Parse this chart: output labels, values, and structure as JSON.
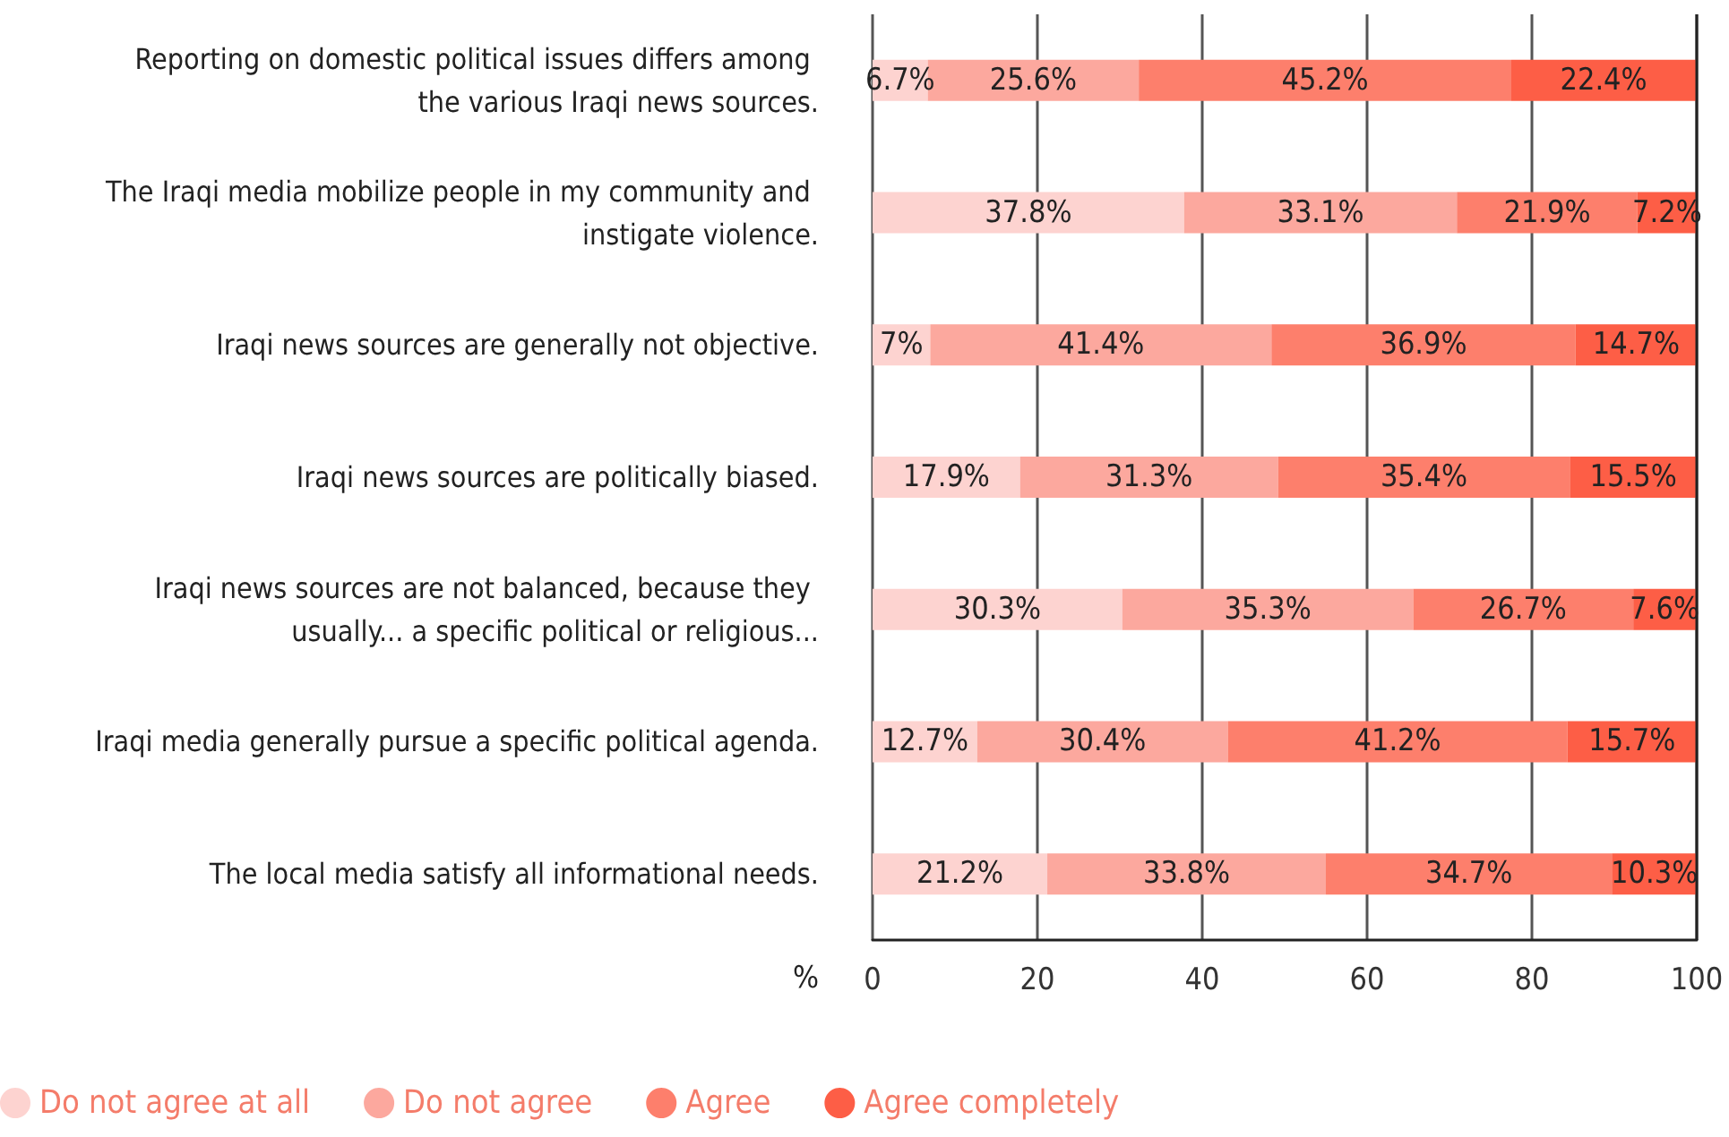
{
  "chart_data": {
    "type": "bar",
    "orientation": "horizontal",
    "stacked": true,
    "xlabel": "%",
    "categories": [
      "Reporting on domestic political issues differs among the various Iraqi news sources.",
      "The Iraqi media mobilize people in my community and instigate violence.",
      "Iraqi news sources are generally not objective.",
      "Iraqi news sources are politically biased.",
      "Iraqi news sources are not balanced, because they usually... a specific political or religious...",
      "Iraqi media generally pursue a specific political agenda.",
      "The local media satisfy all informational needs."
    ],
    "series": [
      {
        "name": "Do not agree at all",
        "color": "#fdd3d0",
        "values": [
          6.7,
          37.8,
          7,
          17.9,
          30.3,
          12.7,
          21.2
        ],
        "value_labels": [
          "6.7%",
          "37.8%",
          "7%",
          "17.9%",
          "30.3%",
          "12.7%",
          "21.2%"
        ]
      },
      {
        "name": "Do not agree",
        "color": "#fca89e",
        "values": [
          25.6,
          33.1,
          41.4,
          31.3,
          35.3,
          30.4,
          33.8
        ],
        "value_labels": [
          "25.6%",
          "33.1%",
          "41.4%",
          "31.3%",
          "35.3%",
          "30.4%",
          "33.8%"
        ]
      },
      {
        "name": "Agree",
        "color": "#fd7f6c",
        "values": [
          45.2,
          21.9,
          36.9,
          35.4,
          26.7,
          41.2,
          34.7
        ],
        "value_labels": [
          "45.2%",
          "21.9%",
          "36.9%",
          "35.4%",
          "26.7%",
          "41.2%",
          "34.7%"
        ]
      },
      {
        "name": "Agree completely",
        "color": "#fd5e46",
        "values": [
          22.4,
          7.2,
          14.7,
          15.5,
          7.6,
          15.7,
          10.3
        ],
        "value_labels": [
          "22.4%",
          "7.2%",
          "14.7%",
          "15.5%",
          "7.6%",
          "15.7%",
          "10.3%"
        ]
      }
    ],
    "xlim": [
      0,
      100
    ],
    "xticks": [
      0,
      20,
      40,
      60,
      80,
      100
    ],
    "grid": "x",
    "legend": "bottom left"
  }
}
